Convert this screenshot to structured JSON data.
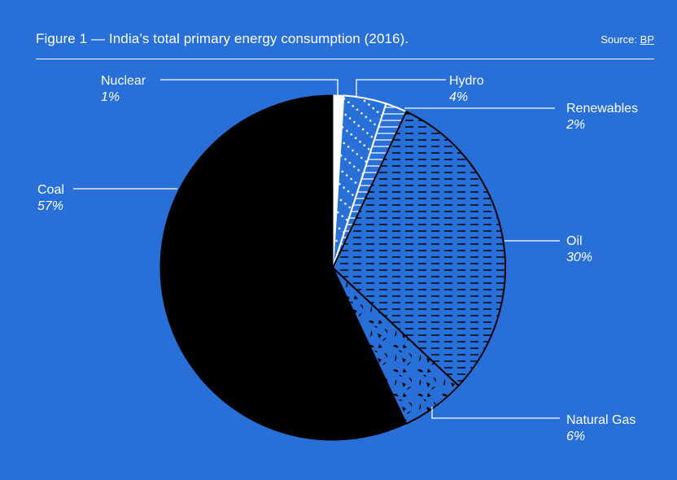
{
  "header": {
    "title": "Figure 1 — India’s total primary energy consumption (2016).",
    "source_prefix": "Source:",
    "source_link": "BP"
  },
  "colors": {
    "background": "#2870d8",
    "white": "#ffffff",
    "black": "#000000"
  },
  "chart_data": {
    "type": "pie",
    "title": "Figure 1 — India’s total primary energy consumption (2016).",
    "source": "BP",
    "start": "12 o'clock, clockwise",
    "slices": [
      {
        "label": "Nuclear",
        "value": 1,
        "pct_label": "1%",
        "fill": "solid-white"
      },
      {
        "label": "Hydro",
        "value": 4,
        "pct_label": "4%",
        "fill": "white-dots"
      },
      {
        "label": "Renewables",
        "value": 2,
        "pct_label": "2%",
        "fill": "white-horizontal-lines"
      },
      {
        "label": "Oil",
        "value": 30,
        "pct_label": "30%",
        "fill": "black-dashes"
      },
      {
        "label": "Natural Gas",
        "value": 6,
        "pct_label": "6%",
        "fill": "black-texture"
      },
      {
        "label": "Coal",
        "value": 57,
        "pct_label": "57%",
        "fill": "solid-black"
      }
    ]
  }
}
